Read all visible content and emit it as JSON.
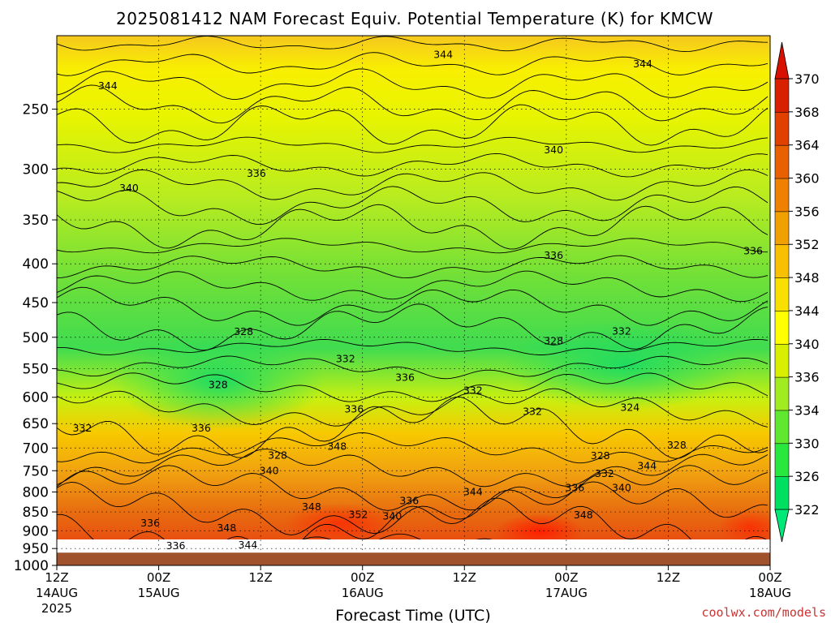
{
  "chart_data": {
    "type": "heatmap",
    "title": "2025081412 NAM Forecast Equiv. Potential Temperature (K) for KMCW",
    "xlabel": "Forecast Time (UTC)",
    "ylabel": "",
    "watermark": "coolwx.com/models",
    "y_scale": "log-pressure",
    "y_range_hPa": [
      1000,
      200
    ],
    "y_ticks": [
      250,
      300,
      350,
      400,
      450,
      500,
      550,
      600,
      650,
      700,
      750,
      800,
      850,
      900,
      950,
      1000
    ],
    "x_range_hours": [
      0,
      84
    ],
    "x_ticks": [
      {
        "hour": 0,
        "line1": "12Z",
        "line2": "14AUG",
        "line3": "2025"
      },
      {
        "hour": 12,
        "line1": "00Z",
        "line2": "15AUG",
        "line3": ""
      },
      {
        "hour": 24,
        "line1": "12Z",
        "line2": "",
        "line3": ""
      },
      {
        "hour": 36,
        "line1": "00Z",
        "line2": "16AUG",
        "line3": ""
      },
      {
        "hour": 48,
        "line1": "12Z",
        "line2": "",
        "line3": ""
      },
      {
        "hour": 60,
        "line1": "00Z",
        "line2": "17AUG",
        "line3": ""
      },
      {
        "hour": 72,
        "line1": "12Z",
        "line2": "",
        "line3": ""
      },
      {
        "hour": 84,
        "line1": "00Z",
        "line2": "18AUG",
        "line3": ""
      }
    ],
    "grid": true,
    "grid_style": "dotted",
    "colorbar": {
      "placement": "right",
      "units": "K",
      "levels": [
        322,
        326,
        330,
        334,
        336,
        340,
        344,
        348,
        352,
        356,
        360,
        364,
        368,
        370
      ],
      "colors": [
        "#00e060",
        "#28e840",
        "#60e830",
        "#a0ec20",
        "#d8f000",
        "#ffff00",
        "#f8e000",
        "#f8c000",
        "#f0a000",
        "#f08000",
        "#e86000",
        "#e04000",
        "#d82000"
      ],
      "extend": "both",
      "extend_low_color": "#00e878",
      "extend_high_color": "#d81000"
    },
    "ground_color": "#a0522d",
    "contour_labels": [
      {
        "hour": 6,
        "p": 233,
        "value": "344"
      },
      {
        "hour": 45.5,
        "p": 212,
        "value": "344"
      },
      {
        "hour": 69,
        "p": 218,
        "value": "344"
      },
      {
        "hour": 8.5,
        "p": 318,
        "value": "340"
      },
      {
        "hour": 58.5,
        "p": 283,
        "value": "340"
      },
      {
        "hour": 23.5,
        "p": 304,
        "value": "336"
      },
      {
        "hour": 58.5,
        "p": 390,
        "value": "336"
      },
      {
        "hour": 82,
        "p": 385,
        "value": "336"
      },
      {
        "hour": 22,
        "p": 492,
        "value": "328"
      },
      {
        "hour": 58.5,
        "p": 506,
        "value": "328"
      },
      {
        "hour": 19,
        "p": 578,
        "value": "328"
      },
      {
        "hour": 66.5,
        "p": 491,
        "value": "332"
      },
      {
        "hour": 34,
        "p": 534,
        "value": "332"
      },
      {
        "hour": 41,
        "p": 565,
        "value": "336"
      },
      {
        "hour": 49,
        "p": 588,
        "value": "332"
      },
      {
        "hour": 56,
        "p": 627,
        "value": "332"
      },
      {
        "hour": 67.5,
        "p": 619,
        "value": "324"
      },
      {
        "hour": 3,
        "p": 659,
        "value": "332"
      },
      {
        "hour": 17,
        "p": 659,
        "value": "336"
      },
      {
        "hour": 35,
        "p": 622,
        "value": "336"
      },
      {
        "hour": 33,
        "p": 697,
        "value": "348"
      },
      {
        "hour": 26,
        "p": 716,
        "value": "328"
      },
      {
        "hour": 25,
        "p": 750,
        "value": "340"
      },
      {
        "hour": 64,
        "p": 717,
        "value": "328"
      },
      {
        "hour": 73,
        "p": 694,
        "value": "328"
      },
      {
        "hour": 64.5,
        "p": 757,
        "value": "332"
      },
      {
        "hour": 69.5,
        "p": 739,
        "value": "344"
      },
      {
        "hour": 61,
        "p": 790,
        "value": "336"
      },
      {
        "hour": 66.5,
        "p": 790,
        "value": "340"
      },
      {
        "hour": 49,
        "p": 800,
        "value": "344"
      },
      {
        "hour": 41.5,
        "p": 822,
        "value": "336"
      },
      {
        "hour": 30,
        "p": 837,
        "value": "348"
      },
      {
        "hour": 35.5,
        "p": 857,
        "value": "352"
      },
      {
        "hour": 39.5,
        "p": 862,
        "value": "340"
      },
      {
        "hour": 62,
        "p": 858,
        "value": "348"
      },
      {
        "hour": 11,
        "p": 880,
        "value": "336"
      },
      {
        "hour": 20,
        "p": 893,
        "value": "348"
      },
      {
        "hour": 22.5,
        "p": 940,
        "value": "344"
      },
      {
        "hour": 14,
        "p": 942,
        "value": "336"
      }
    ]
  }
}
